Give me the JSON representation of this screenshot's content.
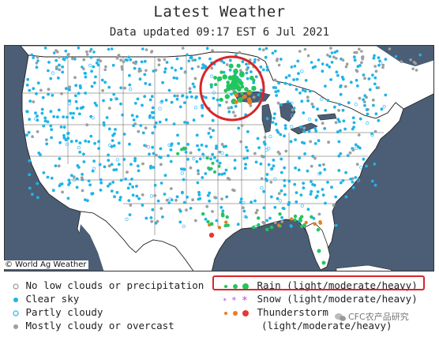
{
  "title": "Latest Weather",
  "subtitle": "Data updated 09:17 EST 6 Jul 2021",
  "credit": "© World Ag Weather",
  "legend": {
    "no_clouds": "No low clouds or precipitation",
    "clear": "Clear sky",
    "partly": "Partly cloudy",
    "mostly": "Mostly cloudy or overcast",
    "rain": "Rain (light/moderate/heavy)",
    "snow": "Snow (light/moderate/heavy)",
    "thunder_1": "Thunderstorm",
    "thunder_2": "(light/moderate/heavy)"
  },
  "watermark": "CFC农产品研究",
  "colors": {
    "ocean": "#4b5e76",
    "land": "#ffffff",
    "clear": "#1eb4e8",
    "partly": "#4fc3f7",
    "mostly": "#9e9e9e",
    "rain": "#22c55e",
    "snow": "#a64ce8",
    "thunder": "#e67e22",
    "thunder_heavy": "#e53935",
    "highlight": "#d8262a"
  }
}
